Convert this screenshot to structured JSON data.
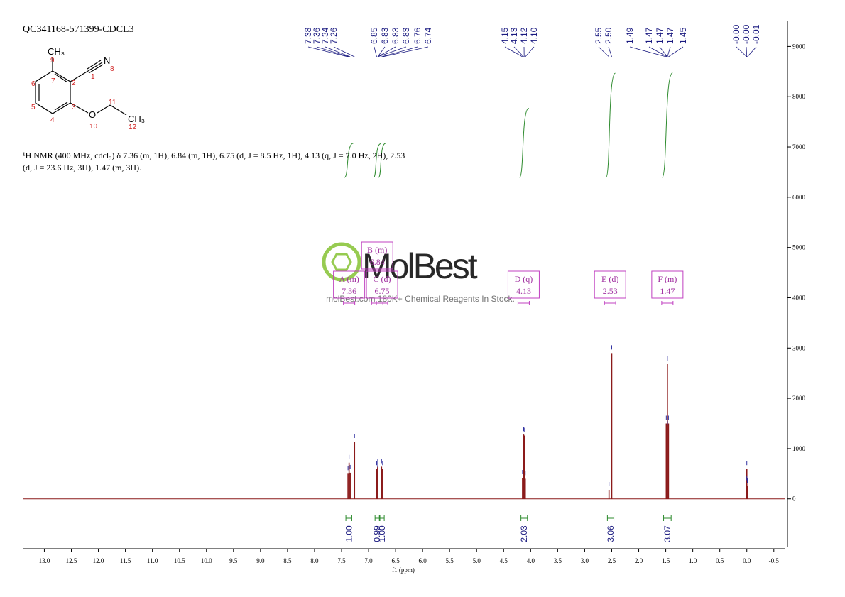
{
  "title": "QC341168-571399-CDCL3",
  "molecule": {
    "labels": [
      "CH₃",
      "N",
      "O",
      "CH₃"
    ],
    "numbers": [
      "9",
      "7",
      "6",
      "1",
      "2",
      "8",
      "5",
      "3",
      "4",
      "11",
      "10",
      "12"
    ]
  },
  "description": "¹H NMR (400 MHz, cdcl₃) δ 7.36 (m, 1H), 6.84 (m, 1H), 6.75 (d, J = 8.5 Hz, 1H), 4.13 (q, J = 7.0 Hz, 2H), 2.53 (d, J = 23.6 Hz, 3H), 1.47 (m, 3H).",
  "watermark": {
    "logo": "MolBest",
    "tagline": "molBest.com 180K+ Chemical Reagents In Stock."
  },
  "chart_data": {
    "type": "spectrum",
    "xlabel": "f1 (ppm)",
    "xlim": [
      13.4,
      -0.7
    ],
    "xticks": [
      {
        "value": 13,
        "label": "13.0"
      },
      12.5,
      {
        "value": 12,
        "label": "12.0"
      },
      11.5,
      {
        "value": 11,
        "label": "11.0"
      },
      10.5,
      {
        "value": 10,
        "label": "10.0"
      },
      9.5,
      {
        "value": 9,
        "label": "9.0"
      },
      8.5,
      {
        "value": 8,
        "label": "8.0"
      },
      7.5,
      {
        "value": 7,
        "label": "7.0"
      },
      6.5,
      {
        "value": 6,
        "label": "6.0"
      },
      5.5,
      {
        "value": 5,
        "label": "5.0"
      },
      4.5,
      {
        "value": 4,
        "label": "4.0"
      },
      3.5,
      {
        "value": 3,
        "label": "3.0"
      },
      2.5,
      {
        "value": 2,
        "label": "2.0"
      },
      1.5,
      {
        "value": 1,
        "label": "1.0"
      },
      0.5,
      {
        "value": 0,
        "label": "0.0"
      },
      -0.5
    ],
    "ylim": [
      -950,
      9500
    ],
    "yticks": [
      0,
      1000,
      2000,
      3000,
      4000,
      5000,
      6000,
      7000,
      8000,
      9000
    ],
    "color": "#8b1a1a",
    "peak_labels": [
      "7.38",
      "7.36",
      "7.34",
      "7.26",
      "6.85",
      "6.83",
      "6.83",
      "6.83",
      "6.76",
      "6.74",
      "4.15",
      "4.13",
      "4.12",
      "4.10",
      "2.55",
      "2.50",
      "1.49",
      "1.47",
      "1.47",
      "1.47",
      "1.45",
      "-0.00",
      "-0.00",
      "-0.01"
    ],
    "peaks": {
      "x": [
        7.38,
        7.36,
        7.34,
        7.26,
        6.85,
        6.83,
        6.83,
        6.83,
        6.76,
        6.74,
        4.15,
        4.13,
        4.12,
        4.1,
        2.55,
        2.5,
        1.49,
        1.47,
        1.47,
        1.47,
        1.45,
        0,
        0,
        -0.01
      ],
      "values": [
        500,
        720,
        520,
        1140,
        600,
        640,
        620,
        560,
        640,
        600,
        420,
        1280,
        1260,
        400,
        180,
        2900,
        1500,
        1550,
        2680,
        1400,
        1500,
        600,
        300,
        250
      ]
    },
    "multiplets": {
      "names": [
        "A (m)",
        "B (m)",
        "C (d)",
        "D (q)",
        "E (d)",
        "F (m)"
      ],
      "shifts": [
        7.36,
        6.84,
        6.75,
        4.13,
        2.53,
        1.47
      ]
    },
    "integrals": {
      "from": [
        7.42,
        6.88,
        6.79,
        4.18,
        2.58,
        1.54
      ],
      "to": [
        7.31,
        6.8,
        6.71,
        4.06,
        2.46,
        1.4
      ],
      "values": [
        1,
        0.99,
        1,
        2.03,
        3.06,
        3.07
      ],
      "value_labels": [
        "1.00",
        "0.99",
        "1.00",
        "2.03",
        "3.06",
        "3.07"
      ]
    }
  }
}
